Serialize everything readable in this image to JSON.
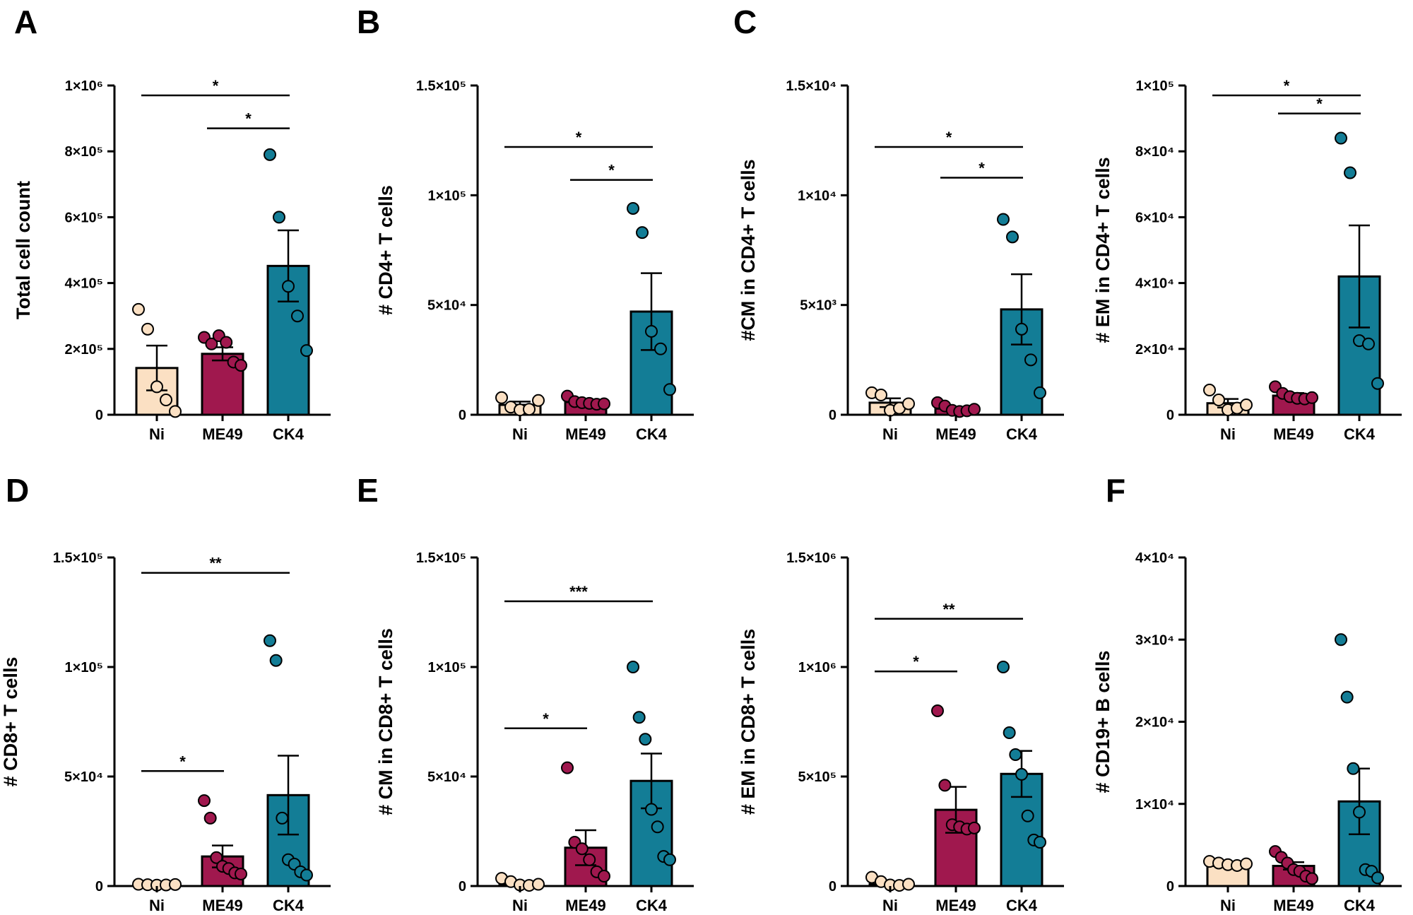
{
  "panel_letters": [
    "A",
    "B",
    "C",
    "D",
    "E",
    "F"
  ],
  "colors": {
    "Ni": "#fbe0c3",
    "ME49": "#a0184e",
    "CK4": "#137d96",
    "axis": "#000000"
  },
  "chart_data": [
    {
      "type": "bar",
      "ylabel": "Total cell count",
      "categories": [
        "Ni",
        "ME49",
        "CK4"
      ],
      "ylim": [
        0,
        1000000
      ],
      "yticks": [
        0,
        200000,
        400000,
        600000,
        800000,
        1000000
      ],
      "ytick_labels": [
        "0",
        "2×10⁵",
        "4×10⁵",
        "6×10⁵",
        "8×10⁵",
        "1×10⁶"
      ],
      "means": [
        142000,
        185000,
        452000
      ],
      "sems": [
        68000,
        20000,
        108000
      ],
      "points": [
        [
          320000,
          260000,
          85000,
          45000,
          10000
        ],
        [
          235000,
          215000,
          240000,
          220000,
          160000,
          150000
        ],
        [
          790000,
          600000,
          390000,
          300000,
          195000
        ]
      ],
      "significance": [
        {
          "from": 0,
          "to": 2,
          "label": "*",
          "y": 970000
        },
        {
          "from": 1,
          "to": 2,
          "label": "*",
          "y": 870000
        }
      ]
    },
    {
      "type": "bar",
      "ylabel": "# CD4+ T cells",
      "categories": [
        "Ni",
        "ME49",
        "CK4"
      ],
      "ylim": [
        0,
        150000
      ],
      "yticks": [
        0,
        50000,
        100000,
        150000
      ],
      "ytick_labels": [
        "0",
        "5×10⁴",
        "1×10⁵",
        "1.5×10⁵"
      ],
      "means": [
        4500,
        5800,
        47000
      ],
      "sems": [
        1500,
        900,
        17500
      ],
      "points": [
        [
          7800,
          3500,
          2200,
          2500,
          6500
        ],
        [
          8500,
          6000,
          5500,
          5200,
          4800,
          5000
        ],
        [
          94000,
          83000,
          38000,
          30000,
          11500
        ]
      ],
      "significance": [
        {
          "from": 0,
          "to": 2,
          "label": "*",
          "y": 122000
        },
        {
          "from": 1,
          "to": 2,
          "label": "*",
          "y": 107000
        }
      ]
    },
    {
      "type": "bar",
      "ylabel": "#CM in CD4+ T cells",
      "categories": [
        "Ni",
        "ME49",
        "CK4"
      ],
      "ylim": [
        0,
        15000
      ],
      "yticks": [
        0,
        5000,
        10000,
        15000
      ],
      "ytick_labels": [
        "0",
        "5×10³",
        "1×10⁴",
        "1.5×10⁴"
      ],
      "means": [
        550,
        280,
        4800
      ],
      "sems": [
        200,
        80,
        1600
      ],
      "points": [
        [
          1000,
          900,
          200,
          300,
          500
        ],
        [
          550,
          400,
          200,
          150,
          180,
          250
        ],
        [
          8900,
          8100,
          3900,
          2500,
          1000
        ]
      ],
      "significance": [
        {
          "from": 0,
          "to": 2,
          "label": "*",
          "y": 12200
        },
        {
          "from": 1,
          "to": 2,
          "label": "*",
          "y": 10800
        }
      ]
    },
    {
      "type": "bar",
      "ylabel": "# EM in CD4+ T cells",
      "categories": [
        "Ni",
        "ME49",
        "CK4"
      ],
      "ylim": [
        0,
        100000
      ],
      "yticks": [
        0,
        20000,
        40000,
        60000,
        80000,
        100000
      ],
      "ytick_labels": [
        "0",
        "2×10⁴",
        "4×10⁴",
        "6×10⁴",
        "8×10⁴",
        "1×10⁵"
      ],
      "means": [
        3500,
        5800,
        42000
      ],
      "sems": [
        1300,
        800,
        15500
      ],
      "points": [
        [
          7500,
          4500,
          1500,
          2000,
          3000
        ],
        [
          8500,
          6500,
          5500,
          5000,
          4800,
          5200
        ],
        [
          84000,
          73500,
          22500,
          21500,
          9500
        ]
      ],
      "significance": [
        {
          "from": 0,
          "to": 2,
          "label": "*",
          "y": 97000
        },
        {
          "from": 1,
          "to": 2,
          "label": "*",
          "y": 91500
        }
      ]
    },
    {
      "type": "bar",
      "ylabel": "# CD8+ T cells",
      "categories": [
        "Ni",
        "ME49",
        "CK4"
      ],
      "ylim": [
        0,
        150000
      ],
      "yticks": [
        0,
        50000,
        100000,
        150000
      ],
      "ytick_labels": [
        "0",
        "5×10⁴",
        "1×10⁵",
        "1.5×10⁵"
      ],
      "means": [
        500,
        13500,
        41500
      ],
      "sems": [
        200,
        5000,
        18000
      ],
      "points": [
        [
          800,
          600,
          400,
          500,
          700
        ],
        [
          39000,
          31000,
          13000,
          9000,
          8000,
          6000,
          5500
        ],
        [
          112000,
          103000,
          31000,
          12000,
          10000,
          6500,
          5000
        ]
      ],
      "significance": [
        {
          "from": 0,
          "to": 2,
          "label": "**",
          "y": 143000
        },
        {
          "from": 0,
          "to": 1,
          "label": "*",
          "y": 52500
        }
      ]
    },
    {
      "type": "bar",
      "ylabel": "# CM in CD8+ T cells",
      "categories": [
        "Ni",
        "ME49",
        "CK4"
      ],
      "ylim": [
        0,
        150000
      ],
      "yticks": [
        0,
        50000,
        100000,
        150000
      ],
      "ytick_labels": [
        "0",
        "5×10⁴",
        "1×10⁵",
        "1.5×10⁵"
      ],
      "means": [
        700,
        17500,
        48000
      ],
      "sems": [
        500,
        8000,
        12500
      ],
      "points": [
        [
          3500,
          2000,
          500,
          300,
          800
        ],
        [
          54000,
          20000,
          17000,
          12000,
          6500,
          4500
        ],
        [
          100000,
          77000,
          67000,
          35000,
          27000,
          13500,
          12000
        ]
      ],
      "significance": [
        {
          "from": 0,
          "to": 2,
          "label": "***",
          "y": 130000
        },
        {
          "from": 0,
          "to": 1,
          "label": "*",
          "y": 72000
        }
      ]
    },
    {
      "type": "bar",
      "ylabel": "# EM in CD8+ T cells",
      "categories": [
        "Ni",
        "ME49",
        "CK4"
      ],
      "ylim": [
        0,
        1500000
      ],
      "yticks": [
        0,
        500000,
        1000000,
        1500000
      ],
      "ytick_labels": [
        "0",
        "5×10⁵",
        "1×10⁶",
        "1.5×10⁶"
      ],
      "means": [
        8000,
        348000,
        512000
      ],
      "sems": [
        8000,
        105000,
        105000
      ],
      "points": [
        [
          40000,
          20000,
          5000,
          3000,
          8000
        ],
        [
          800000,
          460000,
          280000,
          270000,
          260000,
          265000
        ],
        [
          1000000,
          700000,
          600000,
          510000,
          320000,
          210000,
          200000
        ]
      ],
      "significance": [
        {
          "from": 0,
          "to": 2,
          "label": "**",
          "y": 1220000
        },
        {
          "from": 0,
          "to": 1,
          "label": "*",
          "y": 980000
        }
      ]
    },
    {
      "type": "bar",
      "ylabel": "# CD19+ B cells",
      "categories": [
        "Ni",
        "ME49",
        "CK4"
      ],
      "ylim": [
        0,
        40000
      ],
      "yticks": [
        0,
        10000,
        20000,
        30000,
        40000
      ],
      "ytick_labels": [
        "0",
        "1×10⁴",
        "2×10⁴",
        "3×10⁴",
        "4×10⁴"
      ],
      "means": [
        2450,
        2450,
        10300
      ],
      "sems": [
        150,
        450,
        4000
      ],
      "points": [
        [
          3000,
          2800,
          2600,
          2500,
          2700
        ],
        [
          4200,
          3500,
          2800,
          2000,
          1800,
          1200,
          900
        ],
        [
          30000,
          23000,
          14300,
          9000,
          2000,
          1800,
          1000
        ]
      ],
      "significance": []
    }
  ]
}
